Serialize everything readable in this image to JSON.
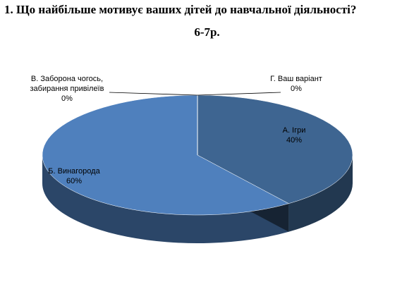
{
  "chart_data": {
    "type": "pie3d",
    "title": "1.  Що найбільше мотивує ваших дітей до навчальної діяльності?",
    "subtitle": "6-7р.",
    "categories": [
      "А. Ігри",
      "Б. Винагорода",
      "В. Заборона чогось, забирання привілеїв",
      "Г. Ваш варіант"
    ],
    "values": [
      40,
      60,
      0,
      0
    ],
    "value_labels": [
      "40%",
      "60%",
      "0%",
      "0%"
    ],
    "colors": [
      "#3e6591",
      "#4f80bd",
      "#4f80bd",
      "#4f80bd"
    ]
  }
}
